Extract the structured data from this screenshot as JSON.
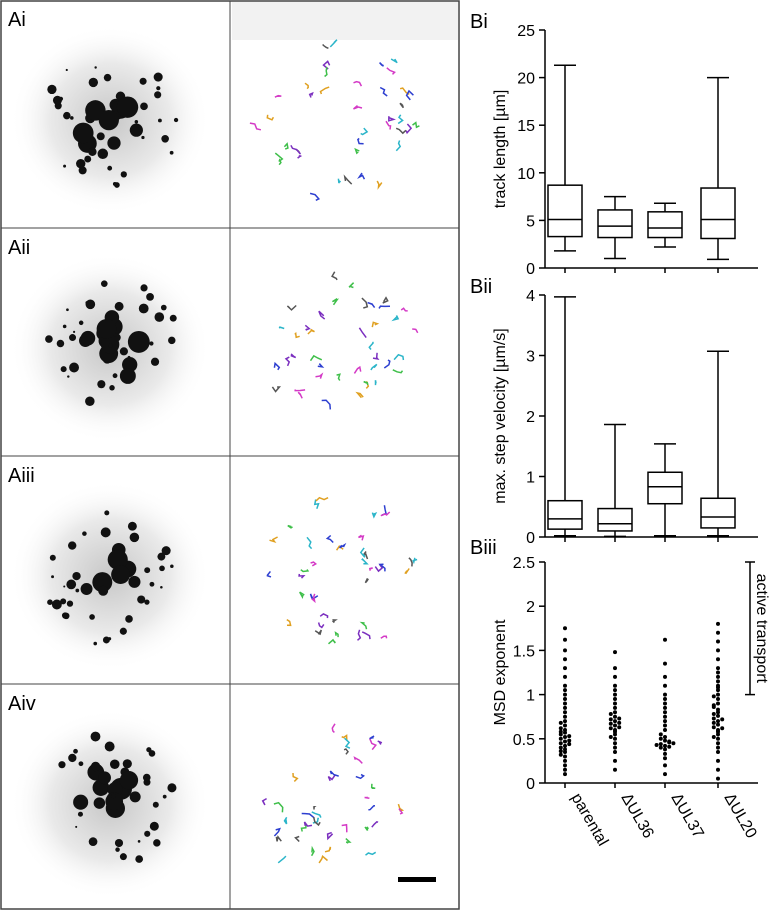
{
  "panels": [
    "Ai",
    "Aii",
    "Aiii",
    "Aiv"
  ],
  "chart_data": [
    {
      "type": "box",
      "label": "Bi",
      "ylabel": "track length [µm]",
      "ylim": [
        0,
        25
      ],
      "yticks": [
        0,
        5,
        10,
        15,
        20,
        25
      ],
      "min": [
        1.8,
        1.0,
        2.2,
        0.9
      ],
      "q1": [
        3.3,
        3.2,
        3.2,
        3.1
      ],
      "median": [
        5.1,
        4.4,
        4.2,
        5.1
      ],
      "q3": [
        8.7,
        6.1,
        5.9,
        8.4
      ],
      "max": [
        21.3,
        7.5,
        6.8,
        20.0
      ]
    },
    {
      "type": "box",
      "label": "Bii",
      "ylabel": "max. step velocity [µm/s]",
      "ylim": [
        0,
        4
      ],
      "yticks": [
        0,
        1,
        2,
        3,
        4
      ],
      "min": [
        0.02,
        0.01,
        0.02,
        0.02
      ],
      "q1": [
        0.13,
        0.1,
        0.55,
        0.15
      ],
      "median": [
        0.3,
        0.22,
        0.83,
        0.33
      ],
      "q3": [
        0.6,
        0.47,
        1.07,
        0.64
      ],
      "max": [
        3.97,
        1.86,
        1.54,
        3.07
      ]
    },
    {
      "type": "swarm",
      "label": "Biii",
      "ylabel": "MSD exponent",
      "ylim": [
        0,
        2.5
      ],
      "yticks": [
        0,
        0.5,
        1,
        1.5,
        2,
        2.5
      ],
      "categories": [
        "parental",
        "ΔUL36",
        "ΔUL37",
        "ΔUL20"
      ],
      "color": "#000000",
      "annotation": {
        "text": "active transport",
        "range": [
          1,
          2.5
        ]
      },
      "values": [
        [
          0.1,
          0.15,
          0.2,
          0.25,
          0.3,
          0.32,
          0.35,
          0.38,
          0.4,
          0.42,
          0.45,
          0.47,
          0.5,
          0.52,
          0.55,
          0.57,
          0.6,
          0.62,
          0.65,
          0.68,
          0.7,
          0.75,
          0.8,
          0.85,
          0.9,
          0.95,
          1.0,
          1.05,
          1.1,
          1.2,
          1.3,
          1.4,
          1.5,
          1.62,
          1.75,
          0.48,
          0.53,
          0.58,
          0.44,
          0.36
        ],
        [
          0.15,
          0.25,
          0.35,
          0.4,
          0.45,
          0.5,
          0.55,
          0.58,
          0.6,
          0.62,
          0.65,
          0.67,
          0.7,
          0.72,
          0.75,
          0.78,
          0.8,
          0.85,
          0.9,
          0.95,
          1.0,
          1.05,
          1.1,
          1.2,
          1.3,
          1.48,
          0.63,
          0.68,
          0.52,
          0.73
        ],
        [
          0.1,
          0.2,
          0.28,
          0.33,
          0.38,
          0.4,
          0.42,
          0.44,
          0.46,
          0.48,
          0.5,
          0.52,
          0.55,
          0.6,
          0.65,
          0.7,
          0.75,
          0.8,
          0.85,
          0.9,
          0.95,
          1.0,
          1.1,
          1.2,
          1.35,
          1.62,
          0.43,
          0.47,
          0.41,
          0.45
        ],
        [
          0.05,
          0.15,
          0.25,
          0.35,
          0.4,
          0.45,
          0.5,
          0.55,
          0.58,
          0.6,
          0.63,
          0.66,
          0.7,
          0.73,
          0.76,
          0.8,
          0.83,
          0.86,
          0.9,
          0.95,
          1.0,
          1.05,
          1.1,
          1.15,
          1.2,
          1.3,
          1.4,
          1.5,
          1.6,
          1.7,
          1.8,
          0.68,
          0.72,
          0.62,
          0.78,
          0.88,
          0.52,
          0.98,
          1.08,
          1.25
        ]
      ]
    }
  ]
}
